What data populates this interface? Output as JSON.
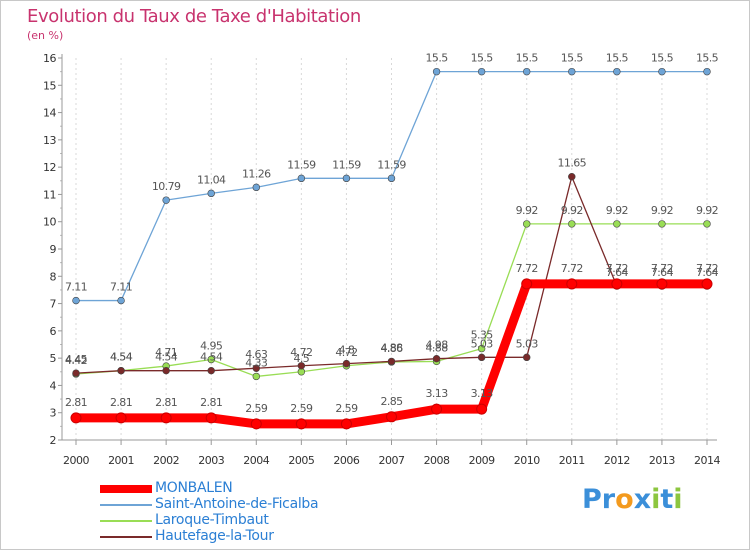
{
  "title": "Evolution du Taux de Taxe d'Habitation",
  "subtitle": "(en %)",
  "logo": {
    "letters": [
      {
        "ch": "P",
        "color": "#3b8fd9"
      },
      {
        "ch": "r",
        "color": "#3b8fd9"
      },
      {
        "ch": "o",
        "color": "#f39a1e"
      },
      {
        "ch": "x",
        "color": "#3b8fd9"
      },
      {
        "ch": "i",
        "color": "#8cc63f"
      },
      {
        "ch": "t",
        "color": "#3b8fd9"
      },
      {
        "ch": "i",
        "color": "#8cc63f"
      }
    ]
  },
  "chart_data": {
    "type": "line",
    "title": "Evolution du Taux de Taxe d'Habitation",
    "subtitle": "(en %)",
    "xlabel": "",
    "ylabel": "",
    "x": [
      "2000",
      "2001",
      "2002",
      "2003",
      "2004",
      "2005",
      "2006",
      "2007",
      "2008",
      "2009",
      "2010",
      "2011",
      "2012",
      "2013",
      "2014"
    ],
    "ylim": [
      2,
      16
    ],
    "yticks": [
      "2",
      "3",
      "4",
      "5",
      "6",
      "7",
      "8",
      "9",
      "10",
      "11",
      "12",
      "13",
      "14",
      "15",
      "16"
    ],
    "grid": "vertical dashed",
    "legend_position": "bottom-left",
    "series": [
      {
        "name": "MONBALEN",
        "color": "#ff0000",
        "values": [
          2.81,
          2.81,
          2.81,
          2.81,
          2.59,
          2.59,
          2.59,
          2.85,
          3.13,
          3.13,
          7.72,
          7.72,
          7.72,
          7.72,
          7.72
        ],
        "labels": [
          "2.81",
          "2.81",
          "2.81",
          "2.81",
          "2.59",
          "2.59",
          "2.59",
          "2.85",
          "3.13",
          "3.13",
          "7.72",
          "7.72",
          "7.72",
          "7.72",
          "7.72"
        ]
      },
      {
        "name": "Saint-Antoine-de-Ficalba",
        "color": "#6ea4d6",
        "values": [
          7.11,
          7.11,
          10.79,
          11.04,
          11.26,
          11.59,
          11.59,
          11.59,
          15.5,
          15.5,
          15.5,
          15.5,
          15.5,
          15.5,
          15.5
        ],
        "labels": [
          "7.11",
          "7.11",
          "10.79",
          "11.04",
          "11.26",
          "11.59",
          "11.59",
          "11.59",
          "15.5",
          "15.5",
          "15.5",
          "15.5",
          "15.5",
          "15.5",
          "15.5"
        ]
      },
      {
        "name": "Laroque-Timbaut",
        "color": "#99dd55",
        "values": [
          4.42,
          4.54,
          4.71,
          4.95,
          4.33,
          4.5,
          4.72,
          4.86,
          4.88,
          5.35,
          9.92,
          9.92,
          9.92,
          9.92,
          9.92
        ],
        "labels": [
          "4.42",
          "4.54",
          "4.71",
          "4.95",
          "4.33",
          "4.5",
          "4.72",
          "4.86",
          "4.88",
          "5.35",
          "9.92",
          "9.92",
          "9.92",
          "9.92",
          "9.92"
        ]
      },
      {
        "name": "Hautefage-la-Tour",
        "color": "#7a2a2a",
        "values": [
          4.45,
          4.54,
          4.54,
          4.54,
          4.63,
          4.72,
          4.8,
          4.88,
          4.98,
          5.03,
          5.03,
          11.65,
          7.64,
          7.64,
          7.64
        ],
        "labels": [
          "4.45",
          "4.54",
          "4.54",
          "4.54",
          "4.63",
          "4.72",
          "4.8",
          "4.88",
          "4.98",
          "5.03",
          "5.03",
          "11.65",
          "7.64",
          "7.64",
          "7.64"
        ]
      }
    ]
  }
}
